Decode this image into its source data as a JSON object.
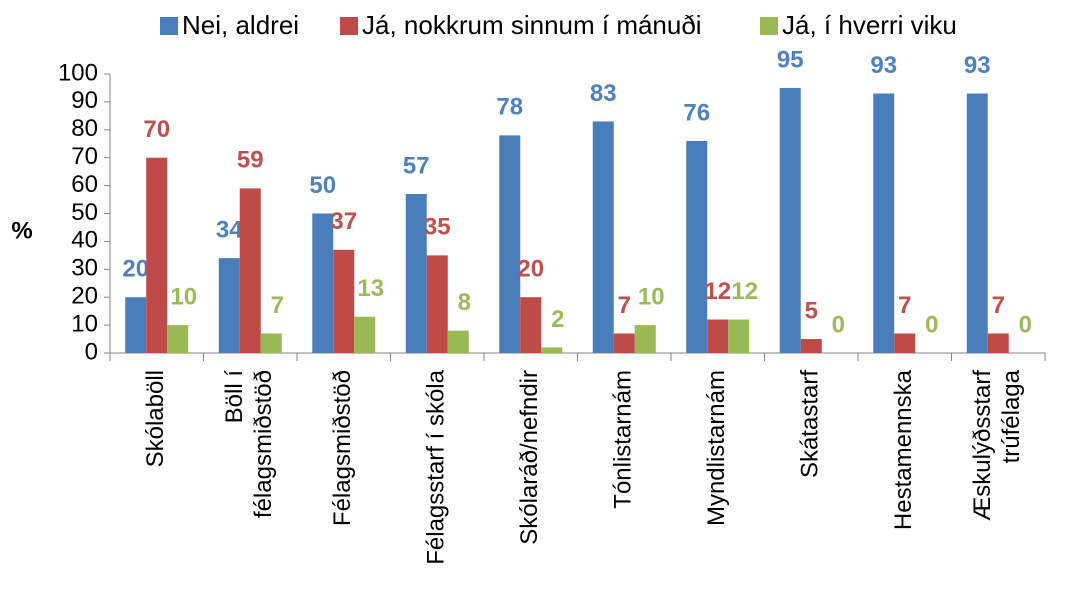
{
  "chart_data": {
    "type": "bar",
    "y_label": "%",
    "categories": [
      "Skólaböll",
      "Böll í\nfélagsmiðstöð",
      "Félagsmiðstöð",
      "Félagsstarf í skóla",
      "Skólaráð/nefndir",
      "Tónlistarnám",
      "Myndlistarnám",
      "Skátastarf",
      "Hestamennska",
      "Æskulýðsstarf\ntrúfélaga"
    ],
    "series": [
      {
        "name": "Nei, aldrei",
        "color": "#4a7ebb",
        "label_color": "#4f81bd",
        "values": [
          20,
          34,
          50,
          57,
          78,
          83,
          76,
          95,
          93,
          93
        ]
      },
      {
        "name": "Já, nokkrum sinnum í mánuði",
        "color": "#be4b48",
        "label_color": "#c0504d",
        "values": [
          70,
          59,
          37,
          35,
          20,
          7,
          12,
          5,
          7,
          7
        ]
      },
      {
        "name": "Já, í hverri viku",
        "color": "#98b954",
        "label_color": "#9bbb59",
        "values": [
          10,
          7,
          13,
          8,
          2,
          10,
          12,
          0,
          0,
          0
        ]
      }
    ],
    "ylim": [
      0,
      100
    ],
    "yticks": [
      0,
      10,
      20,
      30,
      40,
      50,
      60,
      70,
      80,
      90,
      100
    ]
  }
}
